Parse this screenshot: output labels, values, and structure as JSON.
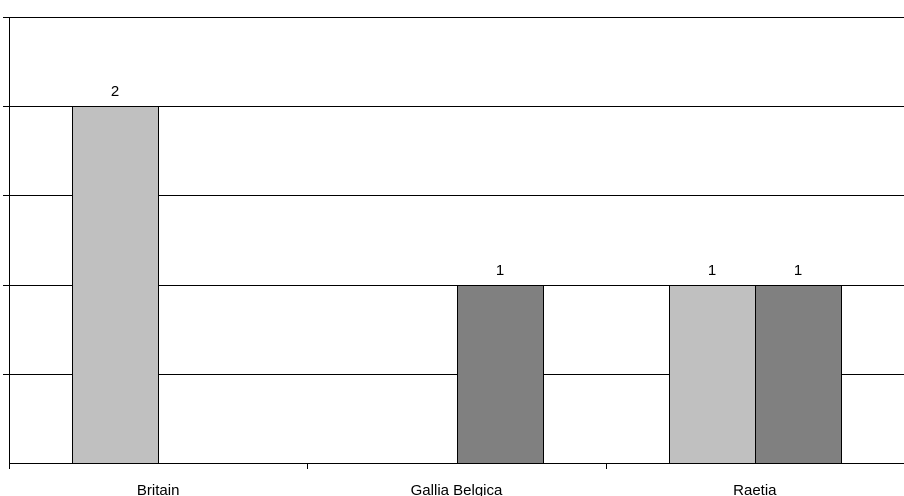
{
  "chart_data": {
    "type": "bar",
    "title": "",
    "xlabel": "",
    "ylabel": "",
    "categories": [
      "Britain",
      "Gallia Belgica",
      "Raetia"
    ],
    "series": [
      {
        "color": "#c0c0c0",
        "values": [
          2,
          null,
          1
        ]
      },
      {
        "color": "#808080",
        "values": [
          null,
          1,
          1
        ]
      }
    ],
    "ylim": [
      0,
      2.5
    ],
    "ytick_step": 0.5,
    "grid": true,
    "legend": "none",
    "data_labels": true
  }
}
